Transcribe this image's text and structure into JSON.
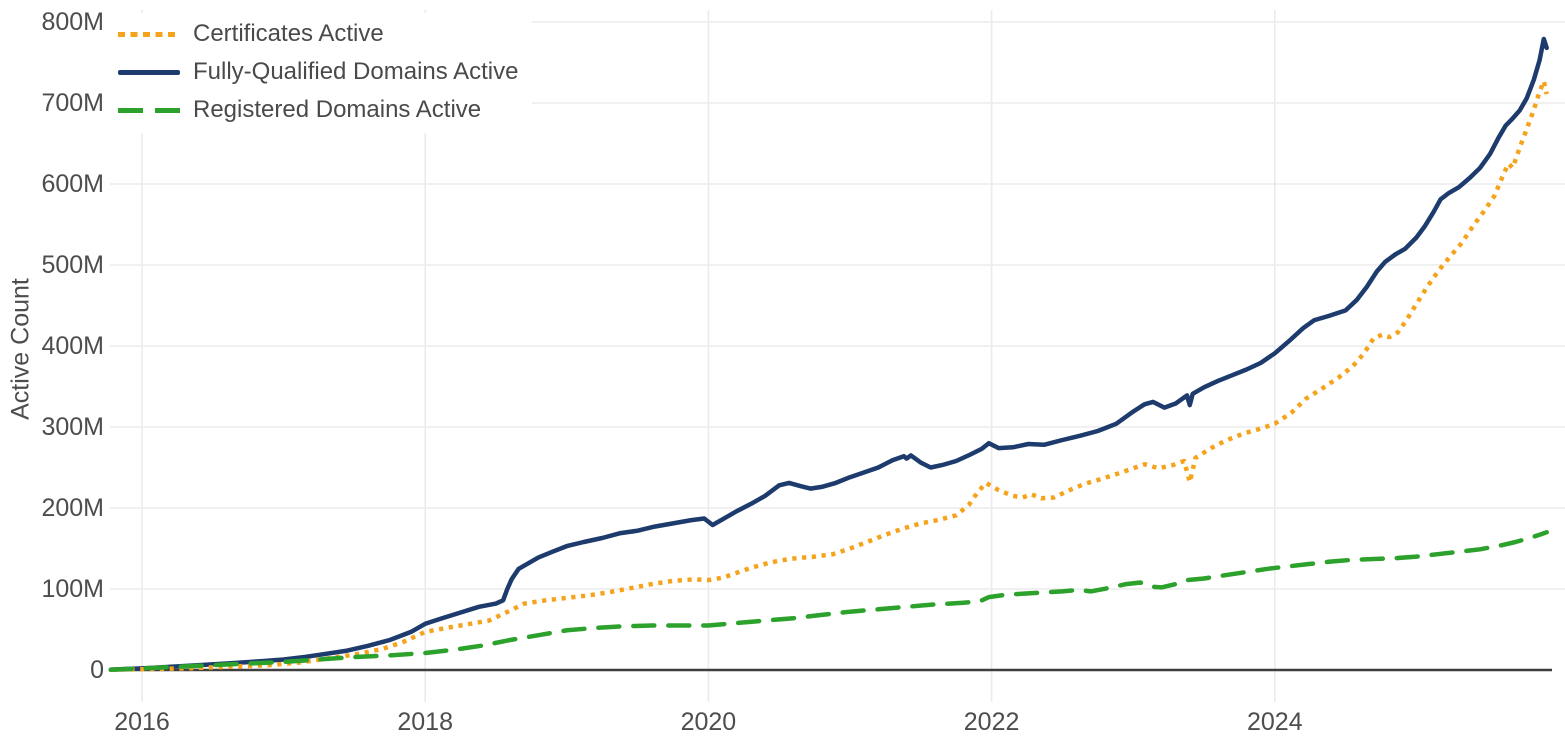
{
  "chart_data": {
    "type": "line",
    "title": "",
    "xlabel": "",
    "ylabel": "Active Count",
    "grid": true,
    "legend_position": "top-left",
    "x_range": [
      2015.77,
      2026.05
    ],
    "ylim": [
      0,
      800
    ],
    "x_tick_values": [
      2016,
      2018,
      2020,
      2022,
      2024
    ],
    "x_tick_labels": [
      "2016",
      "2018",
      "2020",
      "2022",
      "2024"
    ],
    "y_tick_values": [
      0,
      100,
      200,
      300,
      400,
      500,
      600,
      700,
      800
    ],
    "y_tick_labels": [
      "0",
      "100M",
      "200M",
      "300M",
      "400M",
      "500M",
      "600M",
      "700M",
      "800M"
    ],
    "y_unit": "millions",
    "draw_order": [
      1,
      0,
      2
    ],
    "axis_colors": {
      "grid": "#ebebeb",
      "zero_line": "#3e3e3e",
      "tick_text": "#4d4d4d"
    },
    "series": [
      {
        "name": "Certificates Active",
        "color": "#F5A31B",
        "style": "dotted",
        "points": [
          [
            2015.78,
            0.3
          ],
          [
            2016,
            1
          ],
          [
            2016.3,
            2
          ],
          [
            2016.6,
            4
          ],
          [
            2016.9,
            6
          ],
          [
            2017.1,
            9
          ],
          [
            2017.3,
            14
          ],
          [
            2017.5,
            19
          ],
          [
            2017.7,
            26
          ],
          [
            2017.85,
            35
          ],
          [
            2018,
            47
          ],
          [
            2018.15,
            52
          ],
          [
            2018.32,
            57
          ],
          [
            2018.45,
            61
          ],
          [
            2018.56,
            70
          ],
          [
            2018.7,
            82
          ],
          [
            2018.85,
            86
          ],
          [
            2019,
            89
          ],
          [
            2019.15,
            92
          ],
          [
            2019.3,
            96
          ],
          [
            2019.45,
            101
          ],
          [
            2019.6,
            106
          ],
          [
            2019.75,
            110
          ],
          [
            2019.9,
            112
          ],
          [
            2020,
            111
          ],
          [
            2020.1,
            114
          ],
          [
            2020.2,
            120
          ],
          [
            2020.3,
            126
          ],
          [
            2020.4,
            131
          ],
          [
            2020.5,
            135
          ],
          [
            2020.62,
            138
          ],
          [
            2020.75,
            140
          ],
          [
            2020.88,
            143
          ],
          [
            2021,
            150
          ],
          [
            2021.12,
            158
          ],
          [
            2021.25,
            167
          ],
          [
            2021.38,
            175
          ],
          [
            2021.5,
            181
          ],
          [
            2021.62,
            185
          ],
          [
            2021.75,
            191
          ],
          [
            2021.84,
            204
          ],
          [
            2021.9,
            219
          ],
          [
            2021.96,
            231
          ],
          [
            2022.05,
            222
          ],
          [
            2022.15,
            215
          ],
          [
            2022.22,
            213
          ],
          [
            2022.28,
            217
          ],
          [
            2022.35,
            212
          ],
          [
            2022.44,
            213
          ],
          [
            2022.55,
            222
          ],
          [
            2022.66,
            230
          ],
          [
            2022.78,
            236
          ],
          [
            2022.9,
            243
          ],
          [
            2023,
            249
          ],
          [
            2023.08,
            254
          ],
          [
            2023.18,
            249
          ],
          [
            2023.28,
            253
          ],
          [
            2023.36,
            258
          ],
          [
            2023.4,
            232
          ],
          [
            2023.44,
            262
          ],
          [
            2023.55,
            274
          ],
          [
            2023.65,
            283
          ],
          [
            2023.78,
            292
          ],
          [
            2023.9,
            298
          ],
          [
            2024,
            304
          ],
          [
            2024.12,
            318
          ],
          [
            2024.22,
            335
          ],
          [
            2024.33,
            347
          ],
          [
            2024.45,
            361
          ],
          [
            2024.55,
            375
          ],
          [
            2024.63,
            391
          ],
          [
            2024.7,
            410
          ],
          [
            2024.76,
            414
          ],
          [
            2024.81,
            411
          ],
          [
            2024.87,
            417
          ],
          [
            2024.93,
            432
          ],
          [
            2025,
            452
          ],
          [
            2025.08,
            474
          ],
          [
            2025.16,
            494
          ],
          [
            2025.24,
            511
          ],
          [
            2025.32,
            527
          ],
          [
            2025.4,
            548
          ],
          [
            2025.48,
            567
          ],
          [
            2025.55,
            585
          ],
          [
            2025.62,
            614
          ],
          [
            2025.65,
            625
          ],
          [
            2025.68,
            620
          ],
          [
            2025.73,
            645
          ],
          [
            2025.78,
            668
          ],
          [
            2025.83,
            692
          ],
          [
            2025.87,
            714
          ],
          [
            2025.9,
            727
          ],
          [
            2025.92,
            711
          ]
        ]
      },
      {
        "name": "Fully-Qualified Domains Active",
        "color": "#1D3B6D",
        "style": "solid",
        "points": [
          [
            2015.78,
            0.5
          ],
          [
            2016,
            2
          ],
          [
            2016.3,
            5
          ],
          [
            2016.6,
            8
          ],
          [
            2016.85,
            11
          ],
          [
            2017,
            13
          ],
          [
            2017.15,
            16
          ],
          [
            2017.3,
            20
          ],
          [
            2017.45,
            24
          ],
          [
            2017.6,
            30
          ],
          [
            2017.75,
            37
          ],
          [
            2017.9,
            47
          ],
          [
            2018,
            57
          ],
          [
            2018.12,
            64
          ],
          [
            2018.25,
            71
          ],
          [
            2018.38,
            78
          ],
          [
            2018.5,
            82
          ],
          [
            2018.55,
            86
          ],
          [
            2018.58,
            100
          ],
          [
            2018.61,
            112
          ],
          [
            2018.66,
            125
          ],
          [
            2018.72,
            131
          ],
          [
            2018.8,
            139
          ],
          [
            2018.9,
            146
          ],
          [
            2019,
            153
          ],
          [
            2019.12,
            158
          ],
          [
            2019.25,
            163
          ],
          [
            2019.38,
            169
          ],
          [
            2019.5,
            172
          ],
          [
            2019.62,
            177
          ],
          [
            2019.75,
            181
          ],
          [
            2019.88,
            185
          ],
          [
            2019.97,
            187
          ],
          [
            2020.03,
            179
          ],
          [
            2020.1,
            186
          ],
          [
            2020.2,
            196
          ],
          [
            2020.3,
            205
          ],
          [
            2020.4,
            215
          ],
          [
            2020.5,
            228
          ],
          [
            2020.57,
            231
          ],
          [
            2020.65,
            227
          ],
          [
            2020.72,
            224
          ],
          [
            2020.8,
            226
          ],
          [
            2020.9,
            231
          ],
          [
            2021,
            238
          ],
          [
            2021.1,
            244
          ],
          [
            2021.2,
            250
          ],
          [
            2021.3,
            259
          ],
          [
            2021.38,
            264
          ],
          [
            2021.4,
            261
          ],
          [
            2021.43,
            265
          ],
          [
            2021.5,
            256
          ],
          [
            2021.57,
            250
          ],
          [
            2021.65,
            253
          ],
          [
            2021.75,
            258
          ],
          [
            2021.85,
            266
          ],
          [
            2021.93,
            273
          ],
          [
            2021.98,
            280
          ],
          [
            2022.05,
            274
          ],
          [
            2022.15,
            275
          ],
          [
            2022.26,
            279
          ],
          [
            2022.37,
            278
          ],
          [
            2022.5,
            284
          ],
          [
            2022.62,
            289
          ],
          [
            2022.75,
            295
          ],
          [
            2022.88,
            304
          ],
          [
            2023,
            319
          ],
          [
            2023.08,
            328
          ],
          [
            2023.14,
            331
          ],
          [
            2023.22,
            324
          ],
          [
            2023.3,
            329
          ],
          [
            2023.38,
            339
          ],
          [
            2023.4,
            327
          ],
          [
            2023.42,
            341
          ],
          [
            2023.5,
            349
          ],
          [
            2023.6,
            357
          ],
          [
            2023.7,
            364
          ],
          [
            2023.8,
            371
          ],
          [
            2023.9,
            379
          ],
          [
            2024,
            391
          ],
          [
            2024.1,
            406
          ],
          [
            2024.2,
            422
          ],
          [
            2024.28,
            432
          ],
          [
            2024.38,
            437
          ],
          [
            2024.5,
            444
          ],
          [
            2024.58,
            457
          ],
          [
            2024.65,
            473
          ],
          [
            2024.72,
            492
          ],
          [
            2024.78,
            504
          ],
          [
            2024.85,
            513
          ],
          [
            2024.92,
            520
          ],
          [
            2025,
            534
          ],
          [
            2025.06,
            548
          ],
          [
            2025.12,
            565
          ],
          [
            2025.17,
            581
          ],
          [
            2025.23,
            589
          ],
          [
            2025.3,
            596
          ],
          [
            2025.38,
            608
          ],
          [
            2025.45,
            620
          ],
          [
            2025.52,
            637
          ],
          [
            2025.58,
            657
          ],
          [
            2025.63,
            672
          ],
          [
            2025.68,
            681
          ],
          [
            2025.73,
            691
          ],
          [
            2025.78,
            706
          ],
          [
            2025.83,
            729
          ],
          [
            2025.87,
            753
          ],
          [
            2025.9,
            779
          ],
          [
            2025.92,
            768
          ]
        ]
      },
      {
        "name": "Registered Domains Active",
        "color": "#2CA12C",
        "style": "dashed",
        "points": [
          [
            2015.78,
            0.3
          ],
          [
            2016,
            2
          ],
          [
            2016.25,
            4
          ],
          [
            2016.5,
            6
          ],
          [
            2016.75,
            8
          ],
          [
            2017,
            10
          ],
          [
            2017.25,
            13
          ],
          [
            2017.5,
            16
          ],
          [
            2017.75,
            18
          ],
          [
            2018,
            21
          ],
          [
            2018.2,
            25
          ],
          [
            2018.4,
            30
          ],
          [
            2018.6,
            37
          ],
          [
            2018.8,
            43
          ],
          [
            2019,
            49
          ],
          [
            2019.2,
            52
          ],
          [
            2019.4,
            54
          ],
          [
            2019.6,
            55
          ],
          [
            2019.8,
            55
          ],
          [
            2020,
            55
          ],
          [
            2020.2,
            58
          ],
          [
            2020.4,
            61
          ],
          [
            2020.6,
            64
          ],
          [
            2020.8,
            68
          ],
          [
            2021,
            72
          ],
          [
            2021.2,
            75
          ],
          [
            2021.4,
            78
          ],
          [
            2021.6,
            81
          ],
          [
            2021.8,
            83
          ],
          [
            2021.92,
            85
          ],
          [
            2021.98,
            90
          ],
          [
            2022.1,
            93
          ],
          [
            2022.3,
            95
          ],
          [
            2022.5,
            97
          ],
          [
            2022.62,
            99
          ],
          [
            2022.7,
            97
          ],
          [
            2022.82,
            101
          ],
          [
            2022.95,
            106
          ],
          [
            2023.05,
            108
          ],
          [
            2023.12,
            103
          ],
          [
            2023.2,
            102
          ],
          [
            2023.3,
            106
          ],
          [
            2023.38,
            111
          ],
          [
            2023.5,
            113
          ],
          [
            2023.65,
            117
          ],
          [
            2023.8,
            121
          ],
          [
            2023.95,
            125
          ],
          [
            2024.1,
            128
          ],
          [
            2024.25,
            131
          ],
          [
            2024.4,
            134
          ],
          [
            2024.55,
            136
          ],
          [
            2024.7,
            137
          ],
          [
            2024.85,
            138
          ],
          [
            2025,
            140
          ],
          [
            2025.15,
            143
          ],
          [
            2025.3,
            146
          ],
          [
            2025.45,
            149
          ],
          [
            2025.6,
            154
          ],
          [
            2025.7,
            158
          ],
          [
            2025.8,
            163
          ],
          [
            2025.87,
            167
          ],
          [
            2025.92,
            170
          ]
        ]
      }
    ]
  }
}
